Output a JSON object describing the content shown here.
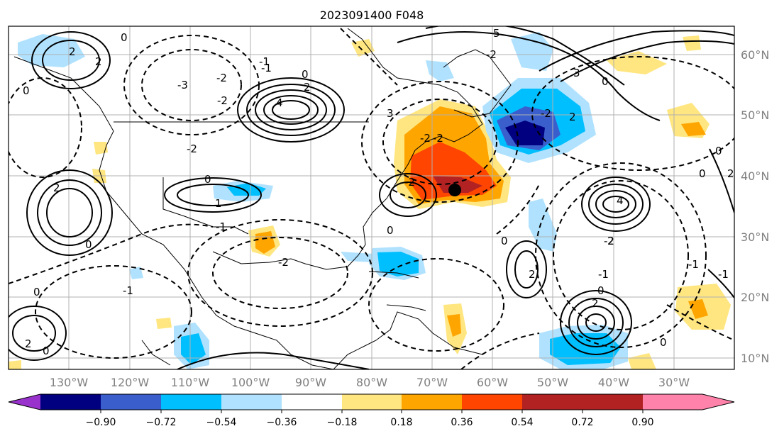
{
  "title": "2023091400 F048",
  "latitude_labels": [
    "60°N",
    "50°N",
    "40°N",
    "30°N",
    "20°N",
    "10°N"
  ],
  "longitude_labels": [
    "130°W",
    "120°W",
    "110°W",
    "100°W",
    "90°W",
    "80°W",
    "70°W",
    "60°W",
    "50°W",
    "40°W",
    "30°W"
  ],
  "colorbar": {
    "colors": [
      "#9932cc",
      "#000080",
      "#3a5fcd",
      "#00bfff",
      "#b0e2ff",
      "#ffffff",
      "#ffe680",
      "#ffa500",
      "#ff4500",
      "#b22222",
      "#ff82ab"
    ],
    "tick_labels": [
      "−0.90",
      "−0.72",
      "−0.54",
      "−0.36",
      "−0.18",
      "0.18",
      "0.36",
      "0.54",
      "0.72",
      "0.90"
    ]
  },
  "contour_labels": [
    "0",
    "0",
    "2",
    "2",
    "4",
    "-2",
    "-2",
    "0",
    "0",
    "2",
    "4",
    "3",
    "-2",
    "5",
    "3",
    "0",
    "-1",
    "-2",
    "-3",
    "-2",
    "-2",
    "-2",
    "0",
    "2",
    "-2",
    "0",
    "0",
    "-2",
    "2",
    "2",
    "-1",
    "2",
    "1",
    "-2",
    "-1",
    "0",
    "0",
    "2",
    "0",
    "-1",
    "2",
    "0",
    "0",
    "-1",
    "2",
    "0",
    "-1",
    "-1"
  ],
  "marker": "storm-center"
}
